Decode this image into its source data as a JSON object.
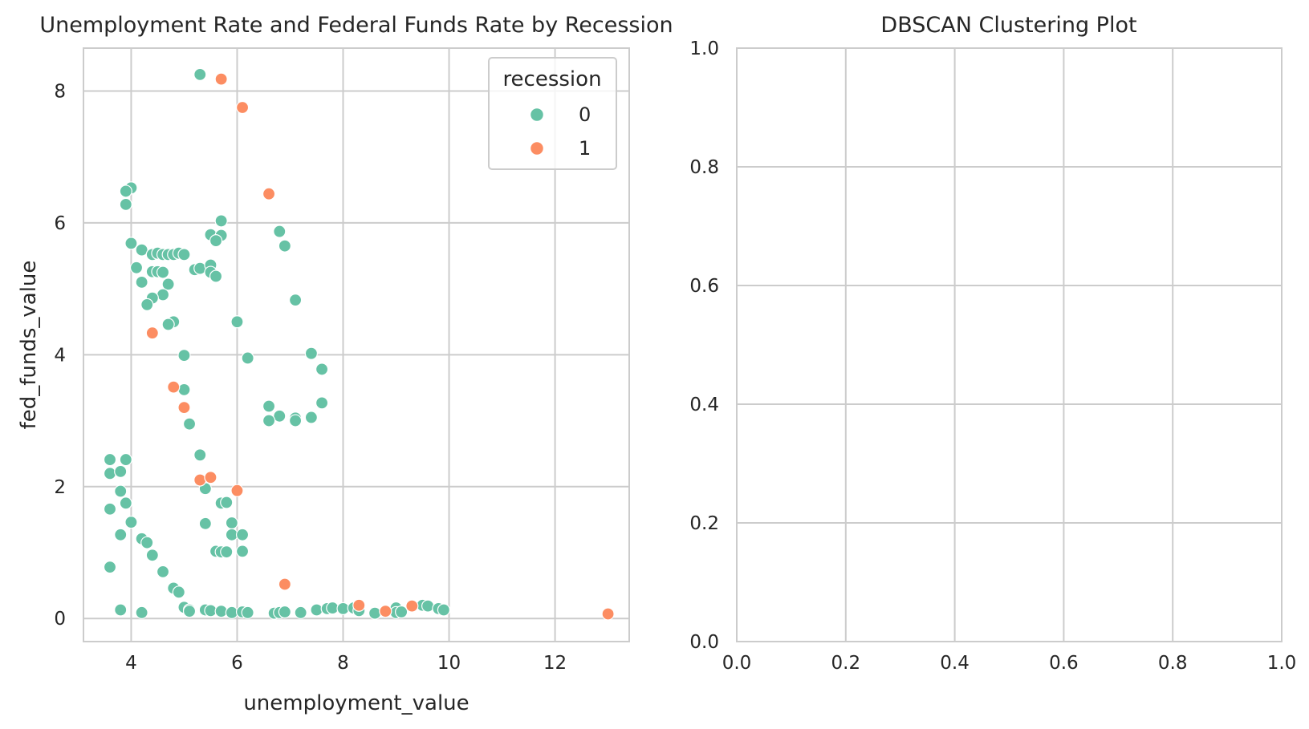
{
  "chart_data": [
    {
      "type": "scatter",
      "title": "Unemployment Rate and Federal Funds Rate by Recession",
      "xlabel": "unemployment_value",
      "ylabel": "fed_funds_value",
      "xlim": [
        3.1,
        13.4
      ],
      "ylim": [
        -0.35,
        8.65
      ],
      "xticks": [
        4,
        6,
        8,
        10,
        12
      ],
      "yticks": [
        0,
        2,
        4,
        6,
        8
      ],
      "grid": true,
      "legend": {
        "title": "recession",
        "position": "top-right"
      },
      "series": [
        {
          "name": "0",
          "color": "#66c2a5",
          "points": [
            [
              5.3,
              8.25
            ],
            [
              4.0,
              6.53
            ],
            [
              3.9,
              6.48
            ],
            [
              3.9,
              6.28
            ],
            [
              5.7,
              6.03
            ],
            [
              5.5,
              5.82
            ],
            [
              5.7,
              5.81
            ],
            [
              5.6,
              5.73
            ],
            [
              6.8,
              5.87
            ],
            [
              6.9,
              5.65
            ],
            [
              4.0,
              5.69
            ],
            [
              4.2,
              5.59
            ],
            [
              4.4,
              5.52
            ],
            [
              4.5,
              5.54
            ],
            [
              4.6,
              5.52
            ],
            [
              4.7,
              5.52
            ],
            [
              4.8,
              5.52
            ],
            [
              4.9,
              5.54
            ],
            [
              5.0,
              5.52
            ],
            [
              4.1,
              5.32
            ],
            [
              4.4,
              5.26
            ],
            [
              4.5,
              5.26
            ],
            [
              4.6,
              5.25
            ],
            [
              5.2,
              5.29
            ],
            [
              5.3,
              5.31
            ],
            [
              5.5,
              5.36
            ],
            [
              5.5,
              5.25
            ],
            [
              5.6,
              5.19
            ],
            [
              4.2,
              5.1
            ],
            [
              4.7,
              5.07
            ],
            [
              4.6,
              4.91
            ],
            [
              4.4,
              4.86
            ],
            [
              4.3,
              4.76
            ],
            [
              7.1,
              4.83
            ],
            [
              4.8,
              4.5
            ],
            [
              4.7,
              4.46
            ],
            [
              6.0,
              4.5
            ],
            [
              5.0,
              3.99
            ],
            [
              6.2,
              3.95
            ],
            [
              7.4,
              4.02
            ],
            [
              7.6,
              3.78
            ],
            [
              5.0,
              3.47
            ],
            [
              6.6,
              3.22
            ],
            [
              7.6,
              3.27
            ],
            [
              6.8,
              3.07
            ],
            [
              7.1,
              3.04
            ],
            [
              7.4,
              3.05
            ],
            [
              6.6,
              3.0
            ],
            [
              7.1,
              3.0
            ],
            [
              5.1,
              2.95
            ],
            [
              5.3,
              2.48
            ],
            [
              3.6,
              2.41
            ],
            [
              3.9,
              2.41
            ],
            [
              3.6,
              2.2
            ],
            [
              3.8,
              2.23
            ],
            [
              3.8,
              1.93
            ],
            [
              5.4,
              1.97
            ],
            [
              3.9,
              1.75
            ],
            [
              5.7,
              1.75
            ],
            [
              5.8,
              1.76
            ],
            [
              3.6,
              1.66
            ],
            [
              4.0,
              1.46
            ],
            [
              5.4,
              1.44
            ],
            [
              5.9,
              1.45
            ],
            [
              5.9,
              1.27
            ],
            [
              6.1,
              1.27
            ],
            [
              3.8,
              1.27
            ],
            [
              4.2,
              1.21
            ],
            [
              4.3,
              1.15
            ],
            [
              5.6,
              1.02
            ],
            [
              5.7,
              1.01
            ],
            [
              5.8,
              1.01
            ],
            [
              6.1,
              1.02
            ],
            [
              4.4,
              0.96
            ],
            [
              3.6,
              0.78
            ],
            [
              4.6,
              0.71
            ],
            [
              4.8,
              0.46
            ],
            [
              4.9,
              0.4
            ],
            [
              5.0,
              0.17
            ],
            [
              5.1,
              0.13
            ],
            [
              5.1,
              0.11
            ],
            [
              5.4,
              0.13
            ],
            [
              5.5,
              0.12
            ],
            [
              5.7,
              0.11
            ],
            [
              5.9,
              0.09
            ],
            [
              6.1,
              0.1
            ],
            [
              6.2,
              0.09
            ],
            [
              3.8,
              0.13
            ],
            [
              4.2,
              0.09
            ],
            [
              6.7,
              0.08
            ],
            [
              6.8,
              0.09
            ],
            [
              6.9,
              0.1
            ],
            [
              7.2,
              0.09
            ],
            [
              7.5,
              0.13
            ],
            [
              7.7,
              0.15
            ],
            [
              7.8,
              0.16
            ],
            [
              8.0,
              0.15
            ],
            [
              8.2,
              0.16
            ],
            [
              8.3,
              0.12
            ],
            [
              8.6,
              0.08
            ],
            [
              9.0,
              0.16
            ],
            [
              9.0,
              0.09
            ],
            [
              9.1,
              0.1
            ],
            [
              9.5,
              0.2
            ],
            [
              9.6,
              0.19
            ],
            [
              9.8,
              0.15
            ],
            [
              9.9,
              0.13
            ]
          ]
        },
        {
          "name": "1",
          "color": "#fc8d62",
          "points": [
            [
              5.7,
              8.18
            ],
            [
              6.1,
              7.75
            ],
            [
              6.6,
              6.44
            ],
            [
              4.4,
              4.33
            ],
            [
              4.8,
              3.51
            ],
            [
              5.0,
              3.2
            ],
            [
              5.3,
              2.1
            ],
            [
              5.5,
              2.14
            ],
            [
              6.0,
              1.94
            ],
            [
              6.9,
              0.52
            ],
            [
              8.3,
              0.2
            ],
            [
              8.8,
              0.11
            ],
            [
              9.3,
              0.19
            ],
            [
              13.0,
              0.07
            ]
          ]
        }
      ]
    },
    {
      "type": "scatter",
      "title": "DBSCAN Clustering Plot",
      "xlabel": "",
      "ylabel": "",
      "xlim": [
        0.0,
        1.0
      ],
      "ylim": [
        0.0,
        1.0
      ],
      "xticks": [
        "0.0",
        "0.2",
        "0.4",
        "0.6",
        "0.8",
        "1.0"
      ],
      "yticks": [
        "0.0",
        "0.2",
        "0.4",
        "0.6",
        "0.8",
        "1.0"
      ],
      "grid": true,
      "series": []
    }
  ]
}
